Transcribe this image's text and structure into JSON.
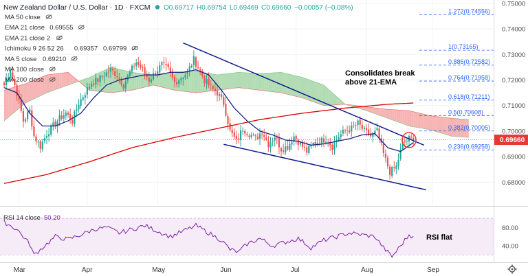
{
  "header": {
    "symbol": "New Zealand Dollar / U.S. Dollar · 1D · FXCM",
    "open": "O0.69717",
    "high": "H0.69754",
    "low": "L0.69469",
    "close": "C0.69660",
    "change": "−0.00057 (−0.08%)"
  },
  "indicators": [
    {
      "label": "MA 50 close",
      "value": "",
      "color": "#2962ff"
    },
    {
      "label": "EMA 21 close",
      "value": "0.69555",
      "color": "#2962ff"
    },
    {
      "label": "EMA 21 close 2",
      "value": "",
      "color": "#2962ff"
    },
    {
      "label": "Ichimoku 9 26 52 26",
      "value": "0.69357",
      "value2": "0.69799",
      "color": "#2962ff",
      "color2": "#e53935"
    },
    {
      "label": "MA 5 close",
      "value": "0.69210",
      "color": "#2962ff"
    },
    {
      "label": "MA 100 close",
      "value": "",
      "color": "#2962ff"
    },
    {
      "label": "MA 200 close",
      "value": "",
      "color": "#2962ff"
    }
  ],
  "price_badge": "0.69660",
  "rsi": {
    "label": "RSI 14 close",
    "value": "50.20"
  },
  "annotations": {
    "consolidates_1": "Consolidates break",
    "consolidates_2": "above 21-EMA",
    "rsi_flat": "RSI flat"
  },
  "colors": {
    "up": "#26a69a",
    "down": "#ef5350",
    "ema21": "#1a237e",
    "ma200": "#d50000",
    "trend": "#0d1b8c",
    "cloud_bull": "#a5d6a7",
    "cloud_bear": "#f4a7a7",
    "rsi_line": "#7b1fa2",
    "fib": "#2962ff"
  },
  "chart_data": {
    "type": "candlestick",
    "ylim": [
      0.6715,
      0.7505
    ],
    "price_ticks": [
      "0.75000",
      "0.74000",
      "0.73000",
      "0.72000",
      "0.71000",
      "0.70000",
      "0.69000",
      "0.68000"
    ],
    "x_labels": [
      "Mar",
      "Apr",
      "May",
      "Jun",
      "Jul",
      "Aug",
      "Sep"
    ],
    "fib_levels": [
      {
        "ratio": "1.272",
        "price": 0.74556,
        "label": "1.272(0.74556)"
      },
      {
        "ratio": "1",
        "price": 0.73165,
        "label": "1(0.73165)"
      },
      {
        "ratio": "0.886",
        "price": 0.72582,
        "label": "0.886(0.72582)"
      },
      {
        "ratio": "0.764",
        "price": 0.71958,
        "label": "0.764(0.71958)"
      },
      {
        "ratio": "0.618",
        "price": 0.71211,
        "label": "0.618(0.71211)"
      },
      {
        "ratio": "0.5",
        "price": 0.70608,
        "label": "0.5(0.70608)"
      },
      {
        "ratio": "0.382",
        "price": 0.70005,
        "label": "0.382(0.70005)"
      },
      {
        "ratio": "0.236",
        "price": 0.69258,
        "label": "0.236(0.69258)"
      }
    ],
    "rsi_ticks": [
      "60.00",
      "40.00"
    ],
    "rsi_ylim": [
      25,
      76
    ],
    "rsi_bands": [
      30,
      70
    ],
    "last_rsi": 50.2,
    "close_anchors": [
      [
        0,
        0.718
      ],
      [
        3,
        0.724
      ],
      [
        6,
        0.715
      ],
      [
        9,
        0.704
      ],
      [
        12,
        0.708
      ],
      [
        14,
        0.698
      ],
      [
        17,
        0.694
      ],
      [
        20,
        0.699
      ],
      [
        23,
        0.702
      ],
      [
        26,
        0.705
      ],
      [
        29,
        0.707
      ],
      [
        32,
        0.704
      ],
      [
        35,
        0.711
      ],
      [
        38,
        0.715
      ],
      [
        41,
        0.719
      ],
      [
        44,
        0.72
      ],
      [
        47,
        0.722
      ],
      [
        50,
        0.724
      ],
      [
        53,
        0.722
      ],
      [
        56,
        0.718
      ],
      [
        59,
        0.723
      ],
      [
        62,
        0.727
      ],
      [
        65,
        0.724
      ],
      [
        68,
        0.72
      ],
      [
        71,
        0.723
      ],
      [
        74,
        0.726
      ],
      [
        77,
        0.724
      ],
      [
        80,
        0.719
      ],
      [
        83,
        0.721
      ],
      [
        86,
        0.723
      ],
      [
        89,
        0.728
      ],
      [
        91,
        0.725
      ],
      [
        94,
        0.72
      ],
      [
        97,
        0.717
      ],
      [
        100,
        0.715
      ],
      [
        103,
        0.711
      ],
      [
        106,
        0.7
      ],
      [
        109,
        0.696
      ],
      [
        112,
        0.701
      ],
      [
        115,
        0.699
      ],
      [
        118,
        0.697
      ],
      [
        121,
        0.7
      ],
      [
        124,
        0.695
      ],
      [
        127,
        0.698
      ],
      [
        130,
        0.693
      ],
      [
        133,
        0.694
      ],
      [
        136,
        0.698
      ],
      [
        139,
        0.695
      ],
      [
        142,
        0.692
      ],
      [
        145,
        0.695
      ],
      [
        148,
        0.696
      ],
      [
        151,
        0.697
      ],
      [
        154,
        0.694
      ],
      [
        157,
        0.698
      ],
      [
        160,
        0.7
      ],
      [
        163,
        0.701
      ],
      [
        166,
        0.703
      ],
      [
        169,
        0.7
      ],
      [
        172,
        0.698
      ],
      [
        175,
        0.7
      ],
      [
        178,
        0.691
      ],
      [
        181,
        0.684
      ],
      [
        184,
        0.686
      ],
      [
        187,
        0.695
      ],
      [
        190,
        0.697
      ],
      [
        192,
        0.6966
      ]
    ],
    "ema21_anchors": [
      [
        0,
        0.717
      ],
      [
        6,
        0.715
      ],
      [
        12,
        0.707
      ],
      [
        18,
        0.702
      ],
      [
        24,
        0.702
      ],
      [
        30,
        0.704
      ],
      [
        36,
        0.707
      ],
      [
        42,
        0.713
      ],
      [
        48,
        0.718
      ],
      [
        54,
        0.72
      ],
      [
        60,
        0.721
      ],
      [
        66,
        0.722
      ],
      [
        72,
        0.722
      ],
      [
        78,
        0.723
      ],
      [
        84,
        0.723
      ],
      [
        90,
        0.724
      ],
      [
        96,
        0.722
      ],
      [
        102,
        0.716
      ],
      [
        108,
        0.709
      ],
      [
        114,
        0.704
      ],
      [
        120,
        0.7
      ],
      [
        126,
        0.6985
      ],
      [
        132,
        0.6965
      ],
      [
        138,
        0.696
      ],
      [
        144,
        0.6945
      ],
      [
        150,
        0.695
      ],
      [
        156,
        0.696
      ],
      [
        162,
        0.697
      ],
      [
        168,
        0.6985
      ],
      [
        174,
        0.699
      ],
      [
        180,
        0.6935
      ],
      [
        186,
        0.692
      ],
      [
        192,
        0.6955
      ]
    ],
    "ma200_anchors": [
      [
        0,
        0.6795
      ],
      [
        20,
        0.683
      ],
      [
        40,
        0.688
      ],
      [
        60,
        0.6935
      ],
      [
        80,
        0.6975
      ],
      [
        100,
        0.701
      ],
      [
        120,
        0.7045
      ],
      [
        140,
        0.707
      ],
      [
        160,
        0.709
      ],
      [
        180,
        0.7105
      ],
      [
        192,
        0.711
      ]
    ],
    "cloud_a_anchors": [
      [
        0,
        0.704
      ],
      [
        10,
        0.711
      ],
      [
        20,
        0.715
      ],
      [
        30,
        0.718
      ],
      [
        40,
        0.721
      ],
      [
        50,
        0.725
      ],
      [
        60,
        0.723
      ],
      [
        70,
        0.722
      ],
      [
        80,
        0.7225
      ],
      [
        90,
        0.7235
      ],
      [
        100,
        0.722
      ],
      [
        110,
        0.723
      ],
      [
        120,
        0.7225
      ],
      [
        130,
        0.723
      ],
      [
        140,
        0.721
      ],
      [
        150,
        0.718
      ],
      [
        160,
        0.7105
      ],
      [
        170,
        0.708
      ],
      [
        180,
        0.705
      ],
      [
        190,
        0.702
      ],
      [
        200,
        0.7005
      ],
      [
        210,
        0.698
      ],
      [
        218,
        0.6975
      ]
    ],
    "cloud_b_anchors": [
      [
        0,
        0.716
      ],
      [
        10,
        0.7185
      ],
      [
        20,
        0.722
      ],
      [
        30,
        0.723
      ],
      [
        40,
        0.716
      ],
      [
        50,
        0.715
      ],
      [
        60,
        0.716
      ],
      [
        70,
        0.718
      ],
      [
        80,
        0.716
      ],
      [
        90,
        0.715
      ],
      [
        100,
        0.716
      ],
      [
        110,
        0.717
      ],
      [
        120,
        0.716
      ],
      [
        130,
        0.715
      ],
      [
        140,
        0.713
      ],
      [
        150,
        0.71
      ],
      [
        160,
        0.7105
      ],
      [
        170,
        0.7095
      ],
      [
        180,
        0.7085
      ],
      [
        190,
        0.708
      ],
      [
        200,
        0.706
      ],
      [
        210,
        0.705
      ],
      [
        218,
        0.7045
      ]
    ],
    "rsi_anchors": [
      [
        0,
        66
      ],
      [
        6,
        58
      ],
      [
        12,
        42
      ],
      [
        14,
        30
      ],
      [
        18,
        38
      ],
      [
        24,
        50
      ],
      [
        30,
        47
      ],
      [
        36,
        52
      ],
      [
        42,
        58
      ],
      [
        48,
        60
      ],
      [
        54,
        54
      ],
      [
        60,
        58
      ],
      [
        66,
        62
      ],
      [
        72,
        56
      ],
      [
        78,
        50
      ],
      [
        84,
        56
      ],
      [
        90,
        62
      ],
      [
        96,
        54
      ],
      [
        102,
        46
      ],
      [
        106,
        36
      ],
      [
        110,
        33
      ],
      [
        114,
        42
      ],
      [
        120,
        48
      ],
      [
        126,
        40
      ],
      [
        132,
        44
      ],
      [
        138,
        48
      ],
      [
        144,
        38
      ],
      [
        150,
        46
      ],
      [
        156,
        50
      ],
      [
        162,
        54
      ],
      [
        168,
        52
      ],
      [
        174,
        50
      ],
      [
        178,
        38
      ],
      [
        182,
        28
      ],
      [
        186,
        40
      ],
      [
        190,
        52
      ],
      [
        192,
        50.2
      ]
    ],
    "trendlines": [
      {
        "from": [
          84,
          0.7345
        ],
        "to": [
          197,
          0.6945
        ]
      },
      {
        "from": [
          103,
          0.6948
        ],
        "to": [
          198,
          0.677
        ]
      }
    ]
  }
}
